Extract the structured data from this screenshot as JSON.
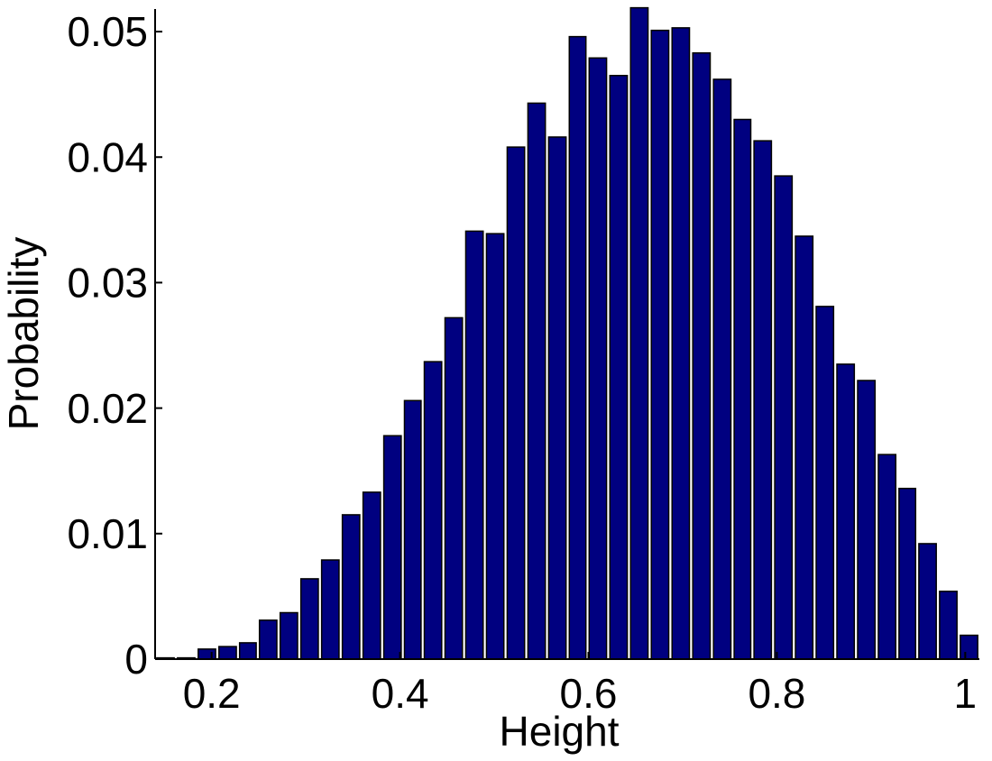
{
  "chart_data": {
    "type": "histogram",
    "xlabel": "Height",
    "ylabel": "Probability",
    "bins": [
      0.14,
      0.162,
      0.184,
      0.206,
      0.228,
      0.249,
      0.271,
      0.293,
      0.315,
      0.337,
      0.359,
      0.381,
      0.403,
      0.424,
      0.446,
      0.468,
      0.49,
      0.512,
      0.534,
      0.556,
      0.578,
      0.599,
      0.621,
      0.643,
      0.665,
      0.687,
      0.709,
      0.731,
      0.753,
      0.774,
      0.796,
      0.818,
      0.84,
      0.862,
      0.884,
      0.906,
      0.928,
      0.949,
      0.971,
      0.993,
      1.015
    ],
    "values": [
      0.0001,
      0.0001,
      0.0008,
      0.001,
      0.0013,
      0.0031,
      0.0037,
      0.0064,
      0.0079,
      0.0115,
      0.0133,
      0.0178,
      0.0206,
      0.0237,
      0.0272,
      0.0341,
      0.0339,
      0.0408,
      0.0443,
      0.0416,
      0.0496,
      0.0479,
      0.0465,
      0.0519,
      0.0501,
      0.0503,
      0.0483,
      0.0462,
      0.043,
      0.0413,
      0.0385,
      0.0337,
      0.0281,
      0.0235,
      0.0222,
      0.0163,
      0.0136,
      0.0092,
      0.0054,
      0.0019
    ],
    "color": "#000080",
    "xlim": [
      0.14,
      1.015
    ],
    "xticks": [
      0.2,
      0.4,
      0.6,
      0.8,
      1
    ],
    "ylim": [
      0,
      0.0518
    ],
    "yticks": [
      0,
      0.01,
      0.02,
      0.03,
      0.04,
      0.05
    ]
  }
}
